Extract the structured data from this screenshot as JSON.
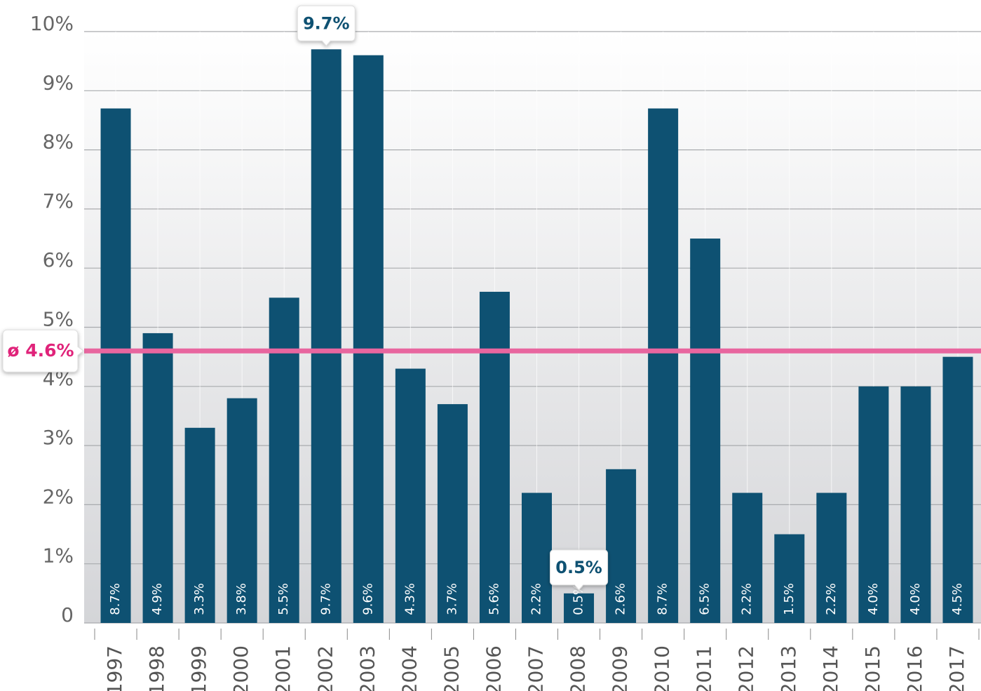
{
  "chart_data": {
    "type": "bar",
    "categories": [
      "1997",
      "1998",
      "1999",
      "2000",
      "2001",
      "2002",
      "2003",
      "2004",
      "2005",
      "2006",
      "2007",
      "2008",
      "2009",
      "2010",
      "2011",
      "2012",
      "2013",
      "2014",
      "2015",
      "2016",
      "2017"
    ],
    "values": [
      8.7,
      4.9,
      3.3,
      3.8,
      5.5,
      9.7,
      9.6,
      4.3,
      3.7,
      5.6,
      2.2,
      0.5,
      2.6,
      8.7,
      6.5,
      2.2,
      1.5,
      2.2,
      4.0,
      4.0,
      4.5
    ],
    "value_labels": [
      "8.7%",
      "4.9%",
      "3.3%",
      "3.8%",
      "5.5%",
      "9.7%",
      "9.6%",
      "4.3%",
      "3.7%",
      "5.6%",
      "2.2%",
      "0.5%",
      "2.6%",
      "8.7%",
      "6.5%",
      "2.2%",
      "1.5%",
      "2.2%",
      "4.0%",
      "4.0%",
      "4.5%"
    ],
    "color": "#0e5172",
    "ylim": [
      0,
      10
    ],
    "yticks": [
      0,
      {
        "value": 1,
        "label": "1%"
      },
      {
        "value": 2,
        "label": "2%"
      },
      {
        "value": 3,
        "label": "3%"
      },
      {
        "value": 4,
        "label": "4%"
      },
      {
        "value": 5,
        "label": "5%"
      },
      {
        "value": 6,
        "label": "6%"
      },
      {
        "value": 7,
        "label": "7%"
      },
      {
        "value": 8,
        "label": "8%"
      },
      {
        "value": 9,
        "label": "9%"
      },
      {
        "value": 10,
        "label": "10%"
      }
    ],
    "grid": true,
    "average": 4.6,
    "average_label": "ø 4.6%",
    "average_color": "#e8669f"
  }
}
